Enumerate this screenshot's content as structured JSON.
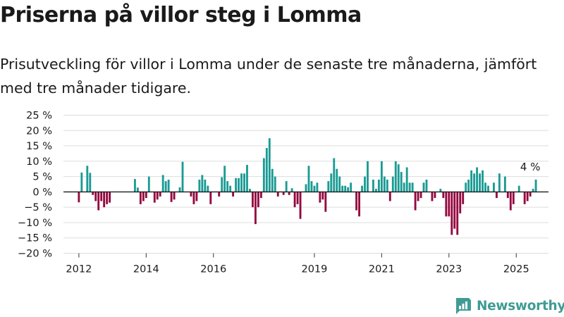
{
  "header": {
    "title": "Priserna på villor steg i Lomma",
    "subtitle": "Prisutveckling för villor i Lomma under de senaste tre månaderna, jämfört med tre månader tidigare."
  },
  "branding": {
    "name": "Newsworthy",
    "icon": "newsworthy-logo-icon",
    "color": "#3f9c94"
  },
  "colors": {
    "positive": "#1a9b94",
    "negative": "#94073f",
    "grid": "#dddddd",
    "zero_line": "#1a1a1a"
  },
  "chart_data": {
    "type": "bar",
    "title": "Priserna på villor steg i Lomma",
    "ylim": [
      -20,
      25
    ],
    "y_ticks": [
      25,
      20,
      15,
      10,
      5,
      0,
      -5,
      -10,
      -15,
      -20
    ],
    "y_tick_labels": [
      "25 %",
      "20 %",
      "15 %",
      "10 %",
      "5 %",
      "0 %",
      "−5 %",
      "−10 %",
      "−15 %",
      "−20 %"
    ],
    "x_start": "2011-08",
    "x_end": "2025-12",
    "x_ticks": [
      {
        "label": "2012",
        "date": "2012-01"
      },
      {
        "label": "2014",
        "date": "2014-01"
      },
      {
        "label": "2016",
        "date": "2016-01"
      },
      {
        "label": "2019",
        "date": "2019-01"
      },
      {
        "label": "2021",
        "date": "2021-01"
      },
      {
        "label": "2023",
        "date": "2023-01"
      },
      {
        "label": "2025",
        "date": "2025-01"
      }
    ],
    "grid": true,
    "annotation": {
      "label": "4 %",
      "date": "2025-04"
    },
    "series": [
      {
        "values": [
          {
            "date": "2012-01",
            "value": -3.4
          },
          {
            "date": "2012-02",
            "value": 6.3
          },
          {
            "date": "2012-04",
            "value": 8.5
          },
          {
            "date": "2012-05",
            "value": 6.2
          },
          {
            "date": "2012-06",
            "value": -1.0
          },
          {
            "date": "2012-07",
            "value": -3.0
          },
          {
            "date": "2012-08",
            "value": -6.0
          },
          {
            "date": "2012-09",
            "value": -3.0
          },
          {
            "date": "2012-10",
            "value": -5.0
          },
          {
            "date": "2012-11",
            "value": -4.0
          },
          {
            "date": "2012-12",
            "value": -3.5
          },
          {
            "date": "2013-09",
            "value": 4.2
          },
          {
            "date": "2013-10",
            "value": 1.4
          },
          {
            "date": "2013-11",
            "value": -4.0
          },
          {
            "date": "2013-12",
            "value": -3.0
          },
          {
            "date": "2014-01",
            "value": -2.0
          },
          {
            "date": "2014-02",
            "value": 5.0
          },
          {
            "date": "2014-04",
            "value": -3.5
          },
          {
            "date": "2014-05",
            "value": -2.5
          },
          {
            "date": "2014-06",
            "value": -1.5
          },
          {
            "date": "2014-07",
            "value": 5.5
          },
          {
            "date": "2014-08",
            "value": 3.5
          },
          {
            "date": "2014-09",
            "value": 4.0
          },
          {
            "date": "2014-10",
            "value": -3.3
          },
          {
            "date": "2014-11",
            "value": -2.5
          },
          {
            "date": "2015-01",
            "value": 1.5
          },
          {
            "date": "2015-02",
            "value": 9.8
          },
          {
            "date": "2015-05",
            "value": -1.5
          },
          {
            "date": "2015-06",
            "value": -4.0
          },
          {
            "date": "2015-07",
            "value": -3.0
          },
          {
            "date": "2015-08",
            "value": 4.0
          },
          {
            "date": "2015-09",
            "value": 5.5
          },
          {
            "date": "2015-10",
            "value": 4.0
          },
          {
            "date": "2015-11",
            "value": 2.0
          },
          {
            "date": "2015-12",
            "value": -4.0
          },
          {
            "date": "2016-03",
            "value": -1.5
          },
          {
            "date": "2016-04",
            "value": 4.8
          },
          {
            "date": "2016-05",
            "value": 8.5
          },
          {
            "date": "2016-06",
            "value": 3.5
          },
          {
            "date": "2016-07",
            "value": 2.0
          },
          {
            "date": "2016-08",
            "value": -1.5
          },
          {
            "date": "2016-09",
            "value": 4.5
          },
          {
            "date": "2016-10",
            "value": 4.5
          },
          {
            "date": "2016-11",
            "value": 6.0
          },
          {
            "date": "2016-12",
            "value": 6.0
          },
          {
            "date": "2017-01",
            "value": 8.8
          },
          {
            "date": "2017-02",
            "value": 1.0
          },
          {
            "date": "2017-03",
            "value": -5.0
          },
          {
            "date": "2017-04",
            "value": -10.5
          },
          {
            "date": "2017-05",
            "value": -5.0
          },
          {
            "date": "2017-06",
            "value": -2.0
          },
          {
            "date": "2017-07",
            "value": 11.0
          },
          {
            "date": "2017-08",
            "value": 14.3
          },
          {
            "date": "2017-09",
            "value": 17.5
          },
          {
            "date": "2017-10",
            "value": 7.5
          },
          {
            "date": "2017-11",
            "value": 5.0
          },
          {
            "date": "2017-12",
            "value": -1.5
          },
          {
            "date": "2018-02",
            "value": -1.0
          },
          {
            "date": "2018-03",
            "value": 3.5
          },
          {
            "date": "2018-04",
            "value": -1.0
          },
          {
            "date": "2018-05",
            "value": 1.2
          },
          {
            "date": "2018-06",
            "value": -5.0
          },
          {
            "date": "2018-07",
            "value": -4.0
          },
          {
            "date": "2018-08",
            "value": -8.8
          },
          {
            "date": "2018-10",
            "value": 2.5
          },
          {
            "date": "2018-11",
            "value": 8.5
          },
          {
            "date": "2018-12",
            "value": 3.5
          },
          {
            "date": "2019-01",
            "value": 2.0
          },
          {
            "date": "2019-02",
            "value": 3.0
          },
          {
            "date": "2019-03",
            "value": -3.5
          },
          {
            "date": "2019-04",
            "value": -2.5
          },
          {
            "date": "2019-05",
            "value": -6.5
          },
          {
            "date": "2019-06",
            "value": 3.5
          },
          {
            "date": "2019-07",
            "value": 6.0
          },
          {
            "date": "2019-08",
            "value": 11.0
          },
          {
            "date": "2019-09",
            "value": 7.5
          },
          {
            "date": "2019-10",
            "value": 5.0
          },
          {
            "date": "2019-11",
            "value": 2.0
          },
          {
            "date": "2019-12",
            "value": 2.0
          },
          {
            "date": "2020-01",
            "value": 1.5
          },
          {
            "date": "2020-02",
            "value": 3.0
          },
          {
            "date": "2020-04",
            "value": -6.0
          },
          {
            "date": "2020-05",
            "value": -8.0
          },
          {
            "date": "2020-06",
            "value": 2.0
          },
          {
            "date": "2020-07",
            "value": 5.0
          },
          {
            "date": "2020-08",
            "value": 10.0
          },
          {
            "date": "2020-10",
            "value": 4.0
          },
          {
            "date": "2020-11",
            "value": 1.0
          },
          {
            "date": "2020-12",
            "value": 4.0
          },
          {
            "date": "2021-01",
            "value": 10.0
          },
          {
            "date": "2021-02",
            "value": 5.0
          },
          {
            "date": "2021-03",
            "value": 4.0
          },
          {
            "date": "2021-04",
            "value": -3.0
          },
          {
            "date": "2021-05",
            "value": 5.0
          },
          {
            "date": "2021-06",
            "value": 10.0
          },
          {
            "date": "2021-07",
            "value": 9.0
          },
          {
            "date": "2021-08",
            "value": 6.5
          },
          {
            "date": "2021-09",
            "value": 3.0
          },
          {
            "date": "2021-10",
            "value": 8.0
          },
          {
            "date": "2021-11",
            "value": 3.0
          },
          {
            "date": "2021-12",
            "value": 3.0
          },
          {
            "date": "2022-01",
            "value": -6.0
          },
          {
            "date": "2022-02",
            "value": -3.0
          },
          {
            "date": "2022-03",
            "value": -2.0
          },
          {
            "date": "2022-04",
            "value": 3.0
          },
          {
            "date": "2022-05",
            "value": 4.0
          },
          {
            "date": "2022-07",
            "value": -3.0
          },
          {
            "date": "2022-08",
            "value": -2.0
          },
          {
            "date": "2022-10",
            "value": 1.0
          },
          {
            "date": "2022-11",
            "value": -2.0
          },
          {
            "date": "2022-12",
            "value": -8.0
          },
          {
            "date": "2023-01",
            "value": -8.0
          },
          {
            "date": "2023-02",
            "value": -14.0
          },
          {
            "date": "2023-03",
            "value": -12.0
          },
          {
            "date": "2023-04",
            "value": -14.0
          },
          {
            "date": "2023-05",
            "value": -7.0
          },
          {
            "date": "2023-06",
            "value": -4.0
          },
          {
            "date": "2023-07",
            "value": 3.0
          },
          {
            "date": "2023-08",
            "value": 4.0
          },
          {
            "date": "2023-09",
            "value": 7.0
          },
          {
            "date": "2023-10",
            "value": 6.0
          },
          {
            "date": "2023-11",
            "value": 8.0
          },
          {
            "date": "2023-12",
            "value": 6.0
          },
          {
            "date": "2024-01",
            "value": 7.0
          },
          {
            "date": "2024-02",
            "value": 3.0
          },
          {
            "date": "2024-03",
            "value": 2.0
          },
          {
            "date": "2024-05",
            "value": 3.0
          },
          {
            "date": "2024-06",
            "value": -2.0
          },
          {
            "date": "2024-07",
            "value": 6.0
          },
          {
            "date": "2024-09",
            "value": 5.0
          },
          {
            "date": "2024-10",
            "value": -2.0
          },
          {
            "date": "2024-11",
            "value": -6.0
          },
          {
            "date": "2024-12",
            "value": -4.0
          },
          {
            "date": "2025-02",
            "value": 2.0
          },
          {
            "date": "2025-04",
            "value": -4.0
          },
          {
            "date": "2025-05",
            "value": -3.0
          },
          {
            "date": "2025-06",
            "value": -1.5
          },
          {
            "date": "2025-07",
            "value": 1.0
          },
          {
            "date": "2025-08",
            "value": 4.0
          }
        ]
      }
    ]
  }
}
